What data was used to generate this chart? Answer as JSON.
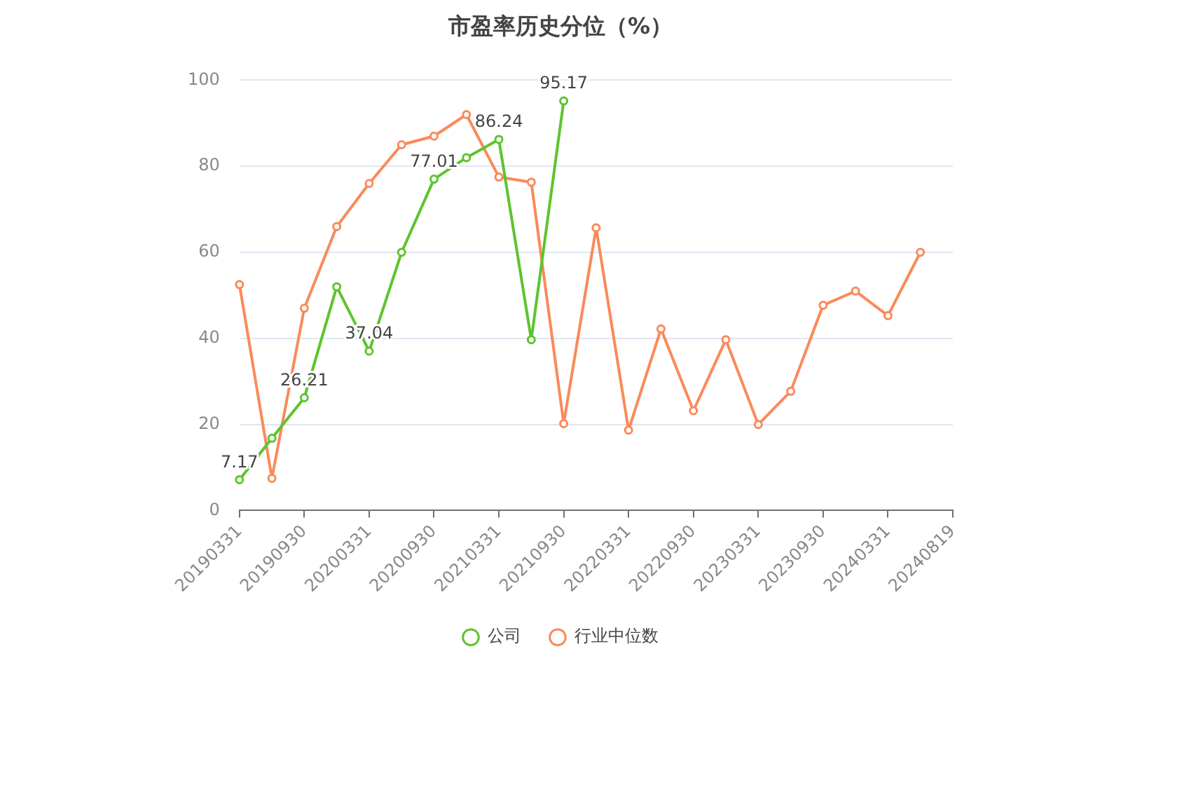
{
  "chart_data": {
    "type": "line",
    "title": "市盈率历史分位（%）",
    "categories": [
      "20190331",
      null,
      "20190930",
      null,
      "20200331",
      null,
      "20200930",
      null,
      "20210331",
      null,
      "20210930",
      null,
      "20220331",
      null,
      "20220930",
      null,
      "20230331",
      null,
      "20230930",
      null,
      "20240331",
      null,
      "20240819"
    ],
    "series": [
      {
        "name": "公司",
        "color": "#5dc42d",
        "values": [
          7.17,
          16.8,
          26.21,
          52,
          37.04,
          60,
          77.01,
          82,
          86.24,
          39.7,
          95.17,
          null,
          null,
          null,
          null,
          null,
          null,
          null,
          null,
          null,
          null,
          null,
          null
        ],
        "value_labels": [
          "7.17",
          null,
          "26.21",
          null,
          "37.04",
          null,
          "77.01",
          null,
          "86.24",
          null,
          "95.17",
          null,
          null,
          null,
          null,
          null,
          null,
          null,
          null,
          null,
          null,
          null,
          null
        ]
      },
      {
        "name": "行业中位数",
        "color": "#fa8a5a",
        "values": [
          52.5,
          7.5,
          47,
          66,
          76,
          85,
          87,
          92,
          77.5,
          76.3,
          20.2,
          65.7,
          18.7,
          42.2,
          23.2,
          39.7,
          20,
          27.7,
          47.7,
          51,
          45.3,
          60,
          null
        ]
      }
    ],
    "ylim": [
      0,
      100
    ],
    "yticks": [
      0,
      20,
      40,
      60,
      80,
      100
    ],
    "grid": "y",
    "legend": "bottom",
    "marker": "circle",
    "line_style": "solid"
  }
}
